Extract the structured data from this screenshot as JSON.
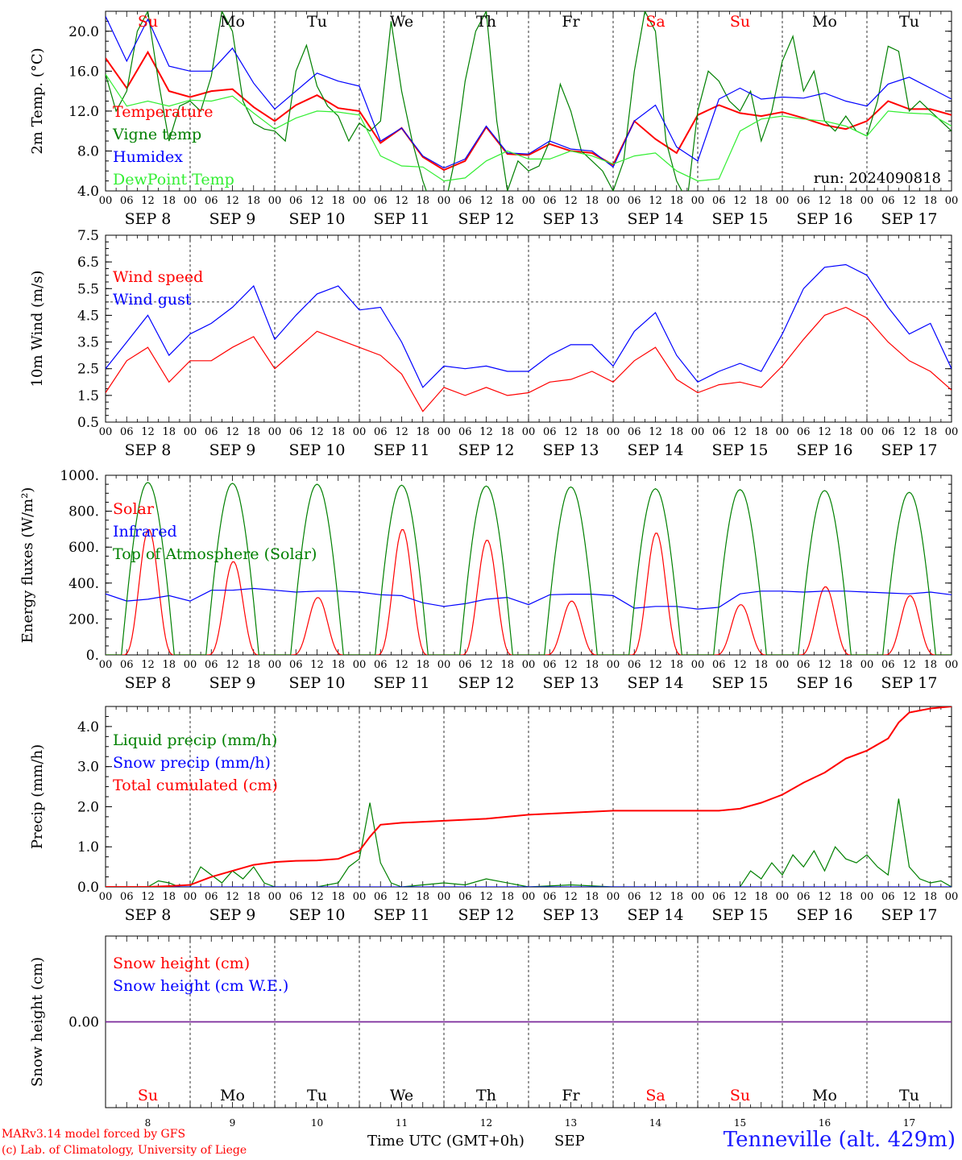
{
  "footer": {
    "credit_line1": "MARv3.14 model forced by GFS",
    "credit_line2": "(c) Lab. of Climatology, University of Liege",
    "x_axis_label": "Time UTC (GMT+0h)",
    "month_label": "SEP",
    "station": "Tenneville (alt. 429m)"
  },
  "days": {
    "weekdays": [
      "Su",
      "Mo",
      "Tu",
      "We",
      "Th",
      "Fr",
      "Sa",
      "Su",
      "Mo",
      "Tu"
    ],
    "weekend_flags": [
      true,
      false,
      false,
      false,
      false,
      false,
      true,
      true,
      false,
      false
    ],
    "dates": [
      "SEP 8",
      "SEP 9",
      "SEP 10",
      "SEP 11",
      "SEP 12",
      "SEP 13",
      "SEP 14",
      "SEP 15",
      "SEP 16",
      "SEP 17"
    ],
    "day_numbers": [
      "8",
      "9",
      "10",
      "11",
      "12",
      "13",
      "14",
      "15",
      "16",
      "17"
    ],
    "hour_ticks": [
      "00",
      "06",
      "12",
      "18"
    ],
    "final_hour": "00",
    "weekend_color": "#ff0000",
    "weekday_color": "#000000"
  },
  "chart_data": [
    {
      "type": "line",
      "id": "temperature",
      "ylabel": "2m Temp. (°C)",
      "ylim": [
        4,
        22
      ],
      "yticks": [
        "4.0",
        "8.0",
        "12.0",
        "16.0",
        "20.0"
      ],
      "ytick_values": [
        4,
        8,
        12,
        16,
        20
      ],
      "annotation": "run: 2024090818",
      "x_unit": "hours since 00 SEP 8",
      "series": [
        {
          "name": "Temperature",
          "color": "#ff0000",
          "x": [
            0,
            6,
            12,
            18,
            24,
            30,
            36,
            42,
            48,
            54,
            60,
            66,
            72,
            78,
            84,
            90,
            96,
            102,
            108,
            114,
            120,
            126,
            132,
            138,
            144,
            150,
            156,
            162,
            168,
            174,
            180,
            186,
            192,
            198,
            204,
            210,
            216,
            222,
            228,
            234,
            240
          ],
          "y": [
            17.3,
            14.3,
            17.9,
            14.0,
            13.4,
            14.0,
            14.2,
            12.4,
            11.0,
            12.6,
            13.6,
            12.3,
            12.0,
            8.8,
            10.3,
            7.4,
            6.1,
            7.0,
            10.4,
            7.7,
            7.6,
            8.7,
            8.0,
            7.8,
            6.6,
            11.0,
            9.2,
            7.8,
            11.6,
            12.6,
            11.8,
            11.5,
            11.9,
            11.3,
            10.6,
            10.2,
            11.0,
            13.0,
            12.2,
            12.2,
            11.6
          ]
        },
        {
          "name": "Vigne temp",
          "color": "#008000",
          "x": [
            0,
            3,
            6,
            9,
            12,
            15,
            18,
            21,
            24,
            27,
            30,
            33,
            36,
            39,
            42,
            45,
            48,
            51,
            54,
            57,
            60,
            63,
            66,
            69,
            72,
            75,
            78,
            81,
            84,
            87,
            90,
            93,
            96,
            99,
            102,
            105,
            108,
            111,
            114,
            117,
            120,
            123,
            126,
            129,
            132,
            135,
            138,
            141,
            144,
            147,
            150,
            153,
            156,
            159,
            162,
            165,
            168,
            171,
            174,
            177,
            180,
            183,
            186,
            189,
            192,
            195,
            198,
            201,
            204,
            207,
            210,
            213,
            216,
            219,
            222,
            225,
            228,
            231,
            234,
            237,
            240
          ],
          "y": [
            15.7,
            12.0,
            14.0,
            20.0,
            22.0,
            15.0,
            9.0,
            12.5,
            13.0,
            12.0,
            15.5,
            22.0,
            20.0,
            13.0,
            10.8,
            10.2,
            10.0,
            9.0,
            16.0,
            18.6,
            14.5,
            12.5,
            11.5,
            9.0,
            10.8,
            10.0,
            11.0,
            21.0,
            14.0,
            9.0,
            5.0,
            2.0,
            2.0,
            7.0,
            15.0,
            20.0,
            22.0,
            11.0,
            4.0,
            7.0,
            6.0,
            6.5,
            9.0,
            14.7,
            12.0,
            8.0,
            7.0,
            6.0,
            4.0,
            7.0,
            16.0,
            22.0,
            20.0,
            9.0,
            5.0,
            3.0,
            12.0,
            16.0,
            15.0,
            13.0,
            12.0,
            14.0,
            9.0,
            12.0,
            17.0,
            19.5,
            14.0,
            16.0,
            11.0,
            10.0,
            11.5,
            10.0,
            9.5,
            13.0,
            18.5,
            18.0,
            12.0,
            13.0,
            12.0,
            11.0,
            10.0
          ]
        },
        {
          "name": "Humidex",
          "color": "#0000ff",
          "x": [
            0,
            6,
            12,
            18,
            24,
            30,
            36,
            42,
            48,
            54,
            60,
            66,
            72,
            78,
            84,
            90,
            96,
            102,
            108,
            114,
            120,
            126,
            132,
            138,
            144,
            150,
            156,
            162,
            168,
            174,
            180,
            186,
            192,
            198,
            204,
            210,
            216,
            222,
            228,
            234,
            240
          ],
          "y": [
            21.5,
            17.0,
            21.2,
            16.5,
            16.0,
            16.0,
            18.3,
            14.8,
            12.2,
            14.0,
            15.8,
            15.0,
            14.5,
            9.0,
            10.3,
            7.5,
            6.3,
            7.2,
            10.5,
            7.8,
            7.7,
            9.0,
            8.2,
            8.0,
            6.4,
            11.0,
            12.6,
            8.4,
            7.0,
            13.2,
            14.3,
            13.2,
            13.4,
            13.3,
            13.8,
            13.0,
            12.5,
            14.7,
            15.4,
            14.3,
            13.2
          ]
        },
        {
          "name": "DewPoint Temp",
          "color": "#33ee33",
          "x": [
            0,
            6,
            12,
            18,
            24,
            30,
            36,
            42,
            48,
            54,
            60,
            66,
            72,
            78,
            84,
            90,
            96,
            102,
            108,
            114,
            120,
            126,
            132,
            138,
            144,
            150,
            156,
            162,
            168,
            174,
            180,
            186,
            192,
            198,
            204,
            210,
            216,
            222,
            228,
            234,
            240
          ],
          "y": [
            15.7,
            12.5,
            13.0,
            12.5,
            13.1,
            13.0,
            13.5,
            11.8,
            10.2,
            11.3,
            12.0,
            11.9,
            11.6,
            7.5,
            6.5,
            6.4,
            5.0,
            5.3,
            7.0,
            8.0,
            7.2,
            7.2,
            8.0,
            7.5,
            6.7,
            7.5,
            7.8,
            6.0,
            5.0,
            5.2,
            10.0,
            11.2,
            11.5,
            11.2,
            11.0,
            10.5,
            9.5,
            12.0,
            11.8,
            11.7,
            10.5
          ]
        }
      ]
    },
    {
      "type": "line",
      "id": "wind",
      "ylabel": "10m Wind (m/s)",
      "ylim": [
        0.5,
        7.5
      ],
      "yticks": [
        "0.5",
        "1.5",
        "2.5",
        "3.5",
        "4.5",
        "5.5",
        "6.5",
        "7.5"
      ],
      "ytick_values": [
        0.5,
        1.5,
        2.5,
        3.5,
        4.5,
        5.5,
        6.5,
        7.5
      ],
      "reference_line": 5.0,
      "x_unit": "hours since 00 SEP 8",
      "series": [
        {
          "name": "Wind speed",
          "color": "#ff0000",
          "x": [
            0,
            6,
            12,
            18,
            24,
            30,
            36,
            42,
            48,
            54,
            60,
            66,
            72,
            78,
            84,
            90,
            96,
            102,
            108,
            114,
            120,
            126,
            132,
            138,
            144,
            150,
            156,
            162,
            168,
            174,
            180,
            186,
            192,
            198,
            204,
            210,
            216,
            222,
            228,
            234,
            240
          ],
          "y": [
            1.6,
            2.8,
            3.3,
            2.0,
            2.8,
            2.8,
            3.3,
            3.7,
            2.5,
            3.2,
            3.9,
            3.6,
            3.3,
            3.0,
            2.3,
            0.9,
            1.8,
            1.5,
            1.8,
            1.5,
            1.6,
            2.0,
            2.1,
            2.4,
            2.0,
            2.8,
            3.3,
            2.1,
            1.6,
            1.9,
            2.0,
            1.8,
            2.6,
            3.6,
            4.5,
            4.8,
            4.4,
            3.5,
            2.8,
            2.4,
            1.7
          ]
        },
        {
          "name": "Wind gust",
          "color": "#0000ff",
          "x": [
            0,
            6,
            12,
            18,
            24,
            30,
            36,
            42,
            48,
            54,
            60,
            66,
            72,
            78,
            84,
            90,
            96,
            102,
            108,
            114,
            120,
            126,
            132,
            138,
            144,
            150,
            156,
            162,
            168,
            174,
            180,
            186,
            192,
            198,
            204,
            210,
            216,
            222,
            228,
            234,
            240
          ],
          "y": [
            2.5,
            3.5,
            4.5,
            3.0,
            3.8,
            4.2,
            4.8,
            5.6,
            3.6,
            4.5,
            5.3,
            5.6,
            4.7,
            4.8,
            3.5,
            1.8,
            2.6,
            2.5,
            2.6,
            2.4,
            2.4,
            3.0,
            3.4,
            3.4,
            2.6,
            3.9,
            4.6,
            3.0,
            2.0,
            2.4,
            2.7,
            2.4,
            3.8,
            5.5,
            6.3,
            6.4,
            6.0,
            4.8,
            3.8,
            4.2,
            2.5
          ]
        }
      ]
    },
    {
      "type": "line",
      "id": "energy",
      "ylabel": "Energy fluxes (W/m²)",
      "ylim": [
        0,
        1000
      ],
      "yticks": [
        "0.",
        "200.",
        "400.",
        "600.",
        "800.",
        "1000."
      ],
      "ytick_values": [
        0,
        200,
        400,
        600,
        800,
        1000
      ],
      "x_unit": "hours since 00 SEP 8",
      "series": [
        {
          "name": "Solar",
          "color": "#ff0000",
          "day_peaks": [
            700,
            520,
            320,
            700,
            640,
            300,
            680,
            280,
            380,
            330
          ],
          "sunrise_hour": 5,
          "sunset_hour": 19.5
        },
        {
          "name": "Infrared",
          "color": "#0000ff",
          "x": [
            0,
            6,
            12,
            18,
            24,
            30,
            36,
            42,
            48,
            54,
            60,
            66,
            72,
            78,
            84,
            90,
            96,
            102,
            108,
            114,
            120,
            126,
            132,
            138,
            144,
            150,
            156,
            162,
            168,
            174,
            180,
            186,
            192,
            198,
            204,
            210,
            216,
            222,
            228,
            234,
            240
          ],
          "y": [
            340,
            300,
            310,
            330,
            300,
            360,
            360,
            370,
            360,
            350,
            355,
            355,
            350,
            335,
            330,
            290,
            270,
            285,
            310,
            320,
            280,
            335,
            338,
            338,
            330,
            260,
            270,
            270,
            255,
            265,
            340,
            355,
            355,
            350,
            355,
            355,
            350,
            345,
            340,
            350,
            335
          ]
        },
        {
          "name": "Top of Atmosphere (Solar)",
          "color": "#008000",
          "day_peaks": [
            960,
            955,
            950,
            945,
            940,
            935,
            925,
            920,
            915,
            905
          ],
          "sunrise_hour": 4.5,
          "sunset_hour": 19.5
        }
      ]
    },
    {
      "type": "line",
      "id": "precip",
      "ylabel": "Precip (mm/h)",
      "ylim": [
        0,
        4.5
      ],
      "yticks": [
        "0.0",
        "1.0",
        "2.0",
        "3.0",
        "4.0"
      ],
      "ytick_values": [
        0,
        1,
        2,
        3,
        4
      ],
      "x_unit": "hours since 00 SEP 8",
      "series": [
        {
          "name": "Liquid precip (mm/h)",
          "color": "#008000",
          "x": [
            0,
            12,
            15,
            18,
            21,
            24,
            27,
            30,
            33,
            36,
            39,
            42,
            45,
            48,
            54,
            60,
            66,
            69,
            72,
            75,
            78,
            81,
            84,
            90,
            96,
            102,
            108,
            120,
            132,
            144,
            156,
            168,
            180,
            183,
            186,
            189,
            192,
            195,
            198,
            201,
            204,
            207,
            210,
            213,
            216,
            219,
            222,
            225,
            228,
            231,
            234,
            237,
            240
          ],
          "y": [
            0,
            0,
            0.15,
            0.1,
            0,
            0,
            0.5,
            0.3,
            0.1,
            0.4,
            0.2,
            0.5,
            0.1,
            0,
            0,
            0,
            0.1,
            0.5,
            0.7,
            2.1,
            0.6,
            0.1,
            0,
            0.05,
            0.1,
            0.05,
            0.2,
            0,
            0.05,
            0,
            0,
            0,
            0,
            0.4,
            0.2,
            0.6,
            0.3,
            0.8,
            0.5,
            0.9,
            0.4,
            1.0,
            0.7,
            0.6,
            0.8,
            0.5,
            0.3,
            2.2,
            0.5,
            0.2,
            0.1,
            0.15,
            0
          ]
        },
        {
          "name": "Snow precip (mm/h)",
          "color": "#0000ff",
          "x": [
            0,
            240
          ],
          "y": [
            0,
            0
          ]
        },
        {
          "name": "Total cumulated (cm)",
          "color": "#ff0000",
          "x": [
            0,
            12,
            18,
            24,
            30,
            36,
            42,
            48,
            54,
            60,
            66,
            72,
            75,
            78,
            84,
            96,
            108,
            120,
            132,
            144,
            156,
            168,
            174,
            180,
            186,
            192,
            198,
            204,
            210,
            216,
            222,
            225,
            228,
            234,
            240
          ],
          "y": [
            0,
            0,
            0.02,
            0.05,
            0.25,
            0.4,
            0.55,
            0.62,
            0.65,
            0.66,
            0.7,
            0.9,
            1.25,
            1.55,
            1.6,
            1.65,
            1.7,
            1.8,
            1.85,
            1.9,
            1.9,
            1.9,
            1.9,
            1.95,
            2.1,
            2.3,
            2.6,
            2.85,
            3.2,
            3.4,
            3.7,
            4.1,
            4.35,
            4.45,
            4.5
          ]
        }
      ]
    },
    {
      "type": "line",
      "id": "snow",
      "ylabel": "Snow height (cm)",
      "ylim": [
        -1,
        1
      ],
      "yticks": [
        "0.00"
      ],
      "ytick_values": [
        0
      ],
      "x_unit": "hours since 00 SEP 8",
      "series": [
        {
          "name": "Snow height (cm)",
          "color": "#ff0000",
          "x": [
            0,
            240
          ],
          "y": [
            0,
            0
          ]
        },
        {
          "name": "Snow height (cm W.E.)",
          "color": "#0000ff",
          "x": [
            0,
            240
          ],
          "y": [
            0,
            0
          ]
        }
      ]
    }
  ]
}
